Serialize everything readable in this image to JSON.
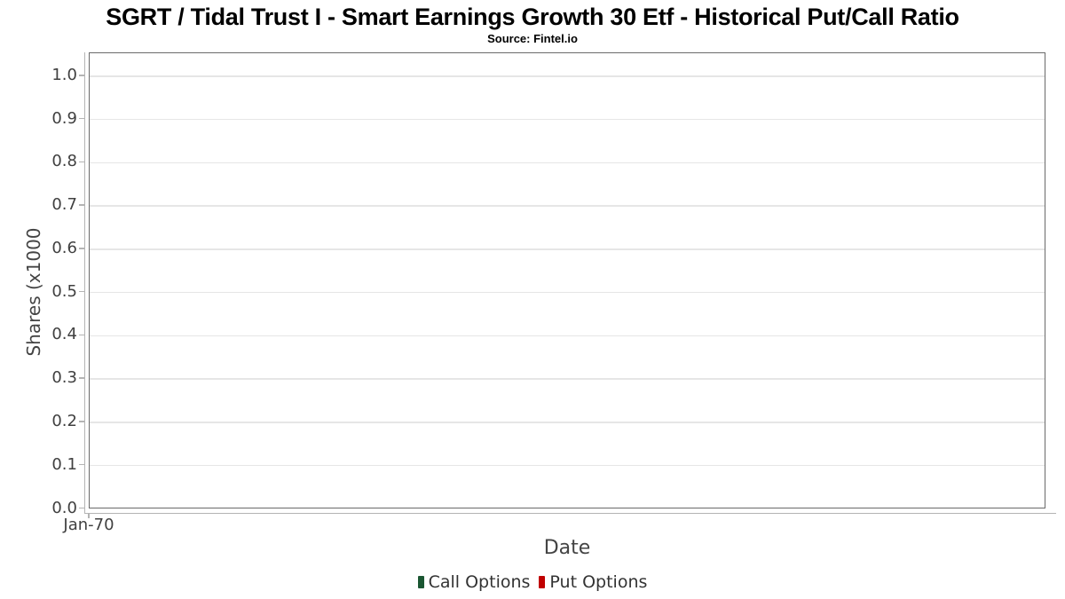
{
  "chart": {
    "title": "SGRT / Tidal Trust I - Smart Earnings Growth 30 Etf - Historical Put/Call Ratio",
    "subtitle": "Source: Fintel.io",
    "xlabel": "Date",
    "ylabel": "Shares (x1000",
    "ytick_labels": [
      "0.0",
      "0.1",
      "0.2",
      "0.3",
      "0.4",
      "0.5",
      "0.6",
      "0.7",
      "0.8",
      "0.9",
      "1.0"
    ],
    "xtick_labels": [
      "Jan-70"
    ],
    "legend": [
      {
        "label": "Call Options",
        "color": "#1a5632"
      },
      {
        "label": "Put Options",
        "color": "#c00000"
      }
    ],
    "colors": {
      "grid": "#e6e6e6",
      "axis_light": "#b4b4b4",
      "plot_border": "#6a6a6a"
    }
  },
  "chart_data": {
    "type": "bar",
    "title": "SGRT / Tidal Trust I - Smart Earnings Growth 30 Etf - Historical Put/Call Ratio",
    "subtitle": "Source: Fintel.io",
    "xlabel": "Date",
    "ylabel": "Shares (x1000",
    "x": [
      "Jan-70"
    ],
    "series": [
      {
        "name": "Call Options",
        "color": "#1a5632",
        "values": []
      },
      {
        "name": "Put Options",
        "color": "#c00000",
        "values": []
      }
    ],
    "ylim": [
      0.0,
      1.05
    ],
    "yticks": [
      0.0,
      0.1,
      0.2,
      0.3,
      0.4,
      0.5,
      0.6,
      0.7,
      0.8,
      0.9,
      1.0
    ],
    "grid": "horizontal",
    "legend_position": "bottom"
  }
}
